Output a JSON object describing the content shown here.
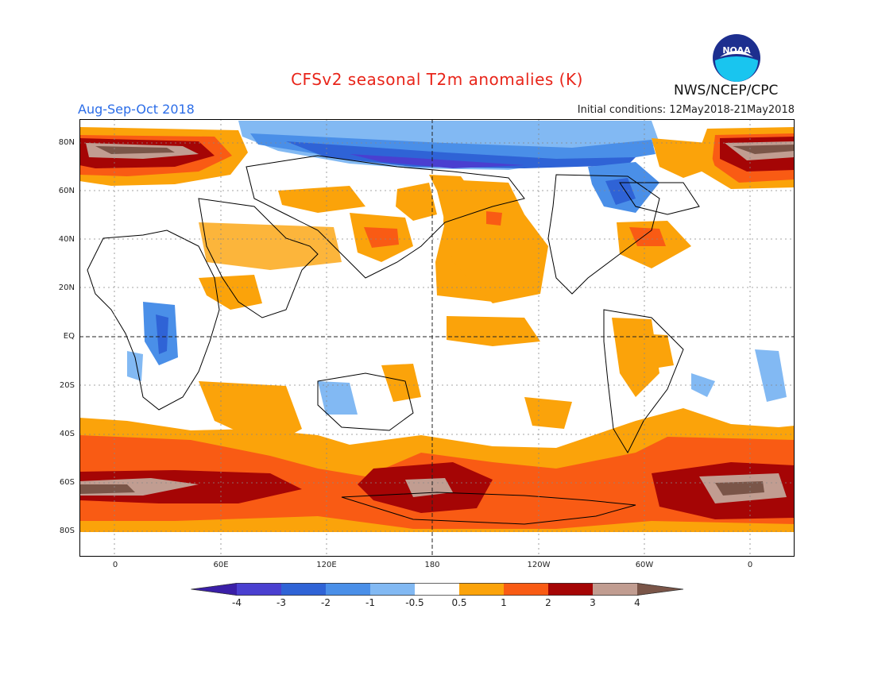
{
  "header": {
    "title": "CFSv2 seasonal T2m anomalies (K)",
    "season": "Aug-Sep-Oct 2018",
    "initial_conditions": "Initial conditions: 12May2018-21May2018",
    "agency": "NWS/NCEP/CPC",
    "logo_text": "NOAA"
  },
  "axes": {
    "lat_labels": [
      "80N",
      "60N",
      "40N",
      "20N",
      "EQ",
      "20S",
      "40S",
      "60S",
      "80S"
    ],
    "lon_labels": [
      "0",
      "60E",
      "120E",
      "180",
      "120W",
      "60W",
      "0"
    ]
  },
  "colorbar": {
    "labels": [
      "-4",
      "-3",
      "-2",
      "-1",
      "-0.5",
      "0.5",
      "1",
      "2",
      "3",
      "4"
    ],
    "colors": [
      "#3a1fa8",
      "#4a3fd0",
      "#2f63d6",
      "#4a8fe8",
      "#82b9f3",
      "#ffffff",
      "#fba30a",
      "#f95b14",
      "#e41c0c",
      "#a50505",
      "#c19d91",
      "#7a5548"
    ]
  },
  "colors": {
    "warm_1": "#fba30a",
    "warm_2": "#f95b14",
    "warm_3": "#a50505",
    "warm_4": "#c19d91",
    "warm_5": "#7a5548",
    "cool_1": "#82b9f3",
    "cool_2": "#4a8fe8",
    "cool_3": "#2f63d6",
    "cool_4": "#4a3fd0"
  }
}
